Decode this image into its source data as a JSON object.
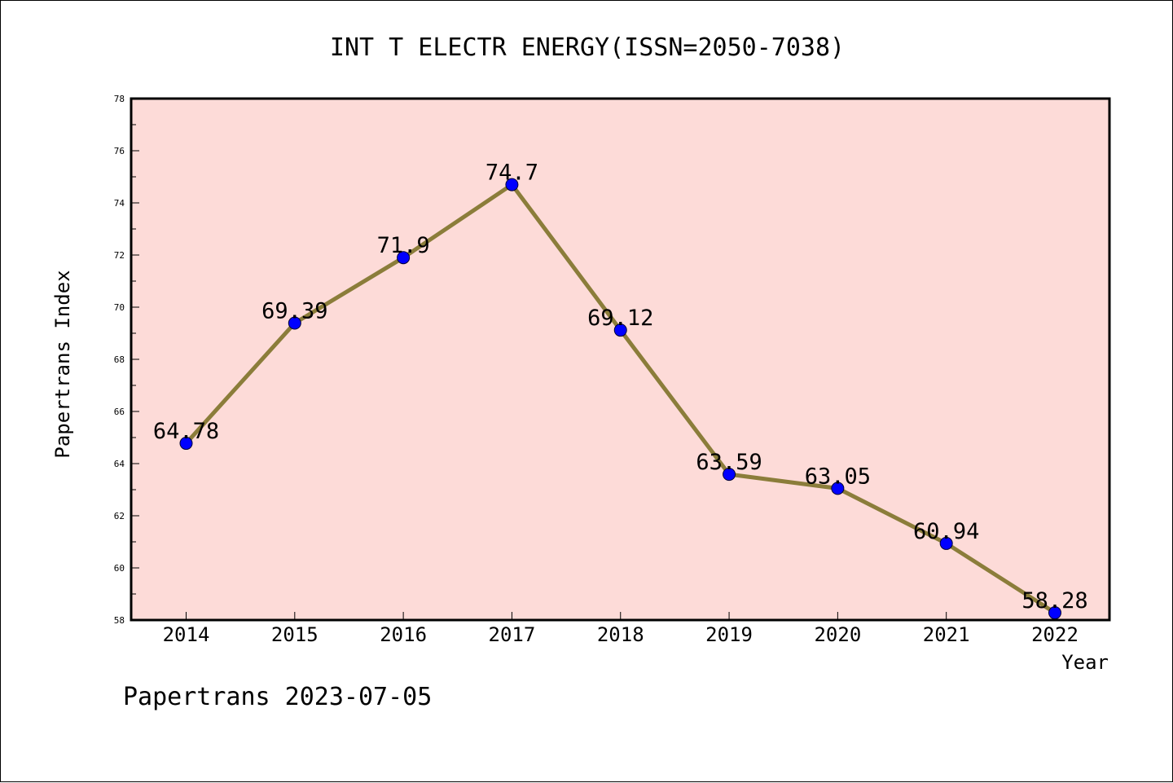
{
  "chart_data": {
    "type": "line",
    "title": "INT T ELECTR ENERGY(ISSN=2050-7038)",
    "xlabel": "Year",
    "ylabel": "Papertrans Index",
    "ylim": [
      58,
      78
    ],
    "yticks": [
      58,
      60,
      62,
      64,
      66,
      68,
      70,
      72,
      74,
      76,
      78
    ],
    "categories": [
      "2014",
      "2015",
      "2016",
      "2017",
      "2018",
      "2019",
      "2020",
      "2021",
      "2022"
    ],
    "series": [
      {
        "values": [
          64.78,
          69.39,
          71.9,
          74.7,
          69.12,
          63.59,
          63.05,
          60.94,
          58.28
        ],
        "labels": [
          "64.78",
          "69.39",
          "71.9",
          "74.7",
          "69.12",
          "63.59",
          "63.05",
          "60.94",
          "58.28"
        ]
      }
    ],
    "colors": {
      "plot_background": "#fddbd8",
      "line": "#8b7d3a",
      "marker": "#0000ff"
    },
    "grid": false,
    "legend": "none"
  },
  "footer": "Papertrans 2023-07-05"
}
